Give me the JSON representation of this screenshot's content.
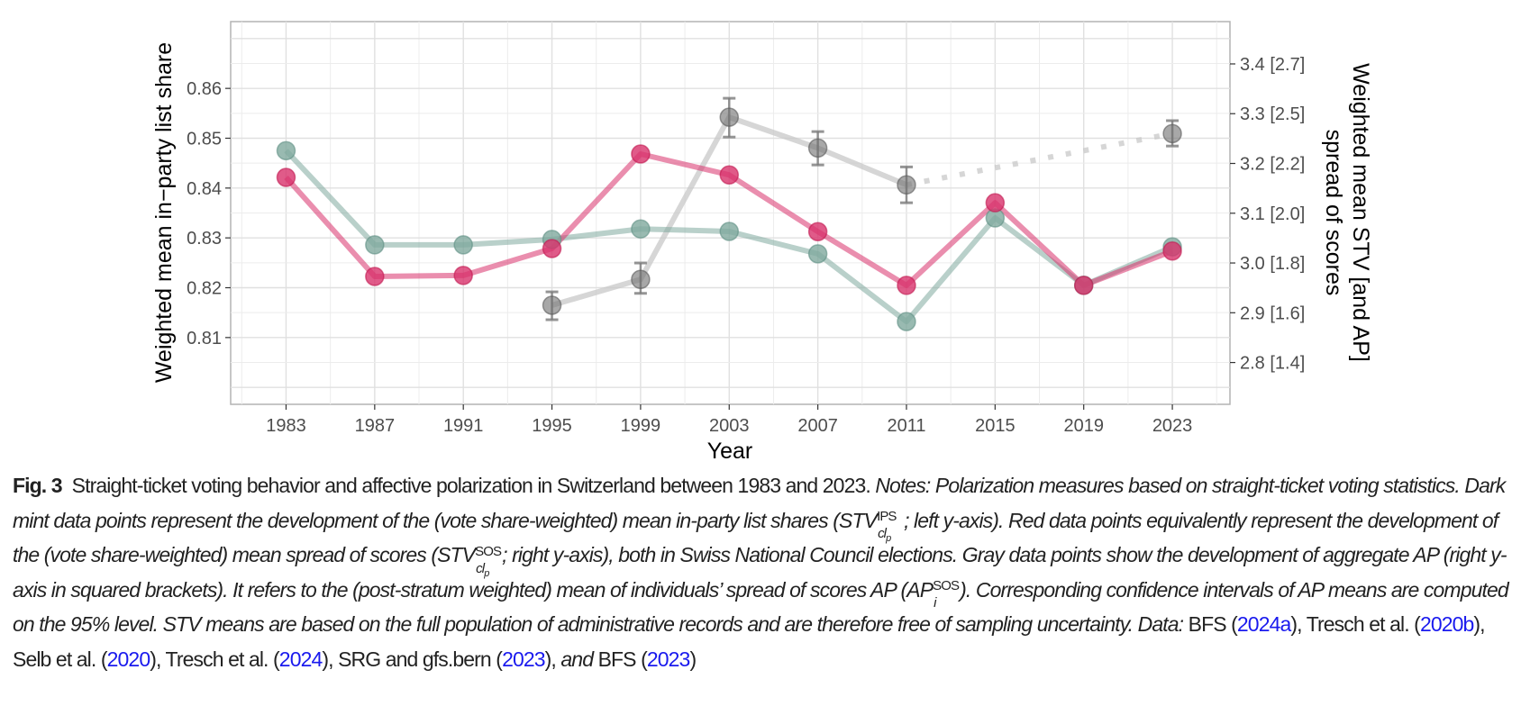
{
  "chart_data": {
    "type": "line",
    "title": "",
    "xlabel": "Year",
    "ylabel_left": "Weighted mean in−party list share",
    "ylabel_right_line1": "Weighted mean STV [and AP]",
    "ylabel_right_line2": "spread of scores",
    "x": [
      1983,
      1987,
      1991,
      1995,
      1999,
      2003,
      2007,
      2011,
      2015,
      2019,
      2023
    ],
    "x_tick_labels": [
      "1983",
      "1987",
      "1991",
      "1995",
      "1999",
      "2003",
      "2007",
      "2011",
      "2015",
      "2019",
      "2023"
    ],
    "ylim_left": [
      0.7966,
      0.8734
    ],
    "ylim_right": [
      2.716,
      3.485
    ],
    "xlim": [
      1980.5,
      2025.6
    ],
    "left_ticks": [
      0.81,
      0.82,
      0.83,
      0.84,
      0.85,
      0.86
    ],
    "left_tick_labels": [
      "0.81",
      "0.82",
      "0.83",
      "0.84",
      "0.85",
      "0.86"
    ],
    "right_ticks": [
      2.8,
      2.9,
      3.0,
      3.1,
      3.2,
      3.3,
      3.4
    ],
    "right_tick_labels": [
      "2.8 [1.4]",
      "2.9 [1.6]",
      "3.0 [1.8]",
      "3.1 [2.0]",
      "3.2 [2.2]",
      "3.3 [2.5]",
      "3.4 [2.7]"
    ],
    "grid": true,
    "legend": "none",
    "series": [
      {
        "name": "STV IPS (mean in-party list share, left y-axis)",
        "axis": "left",
        "color": "#7fa99e",
        "x": [
          1983,
          1987,
          1991,
          1995,
          1999,
          2003,
          2007,
          2011,
          2015,
          2019,
          2023
        ],
        "values": [
          0.8475,
          0.8286,
          0.8286,
          0.8297,
          0.8318,
          0.8313,
          0.8268,
          0.8132,
          0.834,
          0.8205,
          0.8282
        ]
      },
      {
        "name": "STV SOS (mean spread of scores, right y-axis)",
        "axis": "right",
        "color": "#d8326b",
        "x": [
          1983,
          1987,
          1991,
          1995,
          1999,
          2003,
          2007,
          2011,
          2015,
          2019,
          2023
        ],
        "values": [
          3.172,
          2.973,
          2.975,
          3.029,
          3.219,
          3.177,
          3.063,
          2.955,
          3.121,
          2.955,
          3.024
        ]
      },
      {
        "name": "Aggregate AP (right y-axis, squared brackets)",
        "axis": "right",
        "color": "#808080",
        "x": [
          1995,
          1999,
          2003,
          2007,
          2011,
          2023
        ],
        "values": [
          2.915,
          2.967,
          3.293,
          3.231,
          3.157,
          3.26
        ],
        "ci_low": [
          2.886,
          2.939,
          3.253,
          3.197,
          3.121,
          3.235
        ],
        "ci_high": [
          2.942,
          3.0,
          3.331,
          3.264,
          3.193,
          3.286
        ],
        "dotted_segment": [
          2011,
          2023
        ]
      }
    ]
  },
  "caption": {
    "fig_label": "Fig. 3",
    "title": "Straight-ticket voting behavior and affective polarization in Switzerland between 1983 and 2023.",
    "notes_label": "Notes:",
    "t1": "Polarization measures based on straight-ticket voting statistics. Dark mint data points represent the development of the (vote share-weighted) mean in-party list shares (STV",
    "ips_sup": "IPS",
    "clp_sub": "cl",
    "clp_subsub": "p",
    "t2": "; left y-axis). Red data points equivalently represent the development of the (vote share-weighted) mean spread of scores (STV",
    "sos_sup": "SOS",
    "t3": "; right y-axis), both in Swiss National Council elections. Gray data points show the development of aggregate AP (right y-axis in squared brackets). It refers to the (post-stratum weighted) mean of individuals’ spread of scores AP (AP",
    "i_sub": "i",
    "t4": "). Corresponding confidence intervals of AP means are computed on the 95% level. STV means are based on the full population of administrative records and are therefore free of sampling uncertainty.",
    "data_label": "Data:",
    "ref1_pre": "BFS (",
    "ref1_link": "2024a",
    "ref2_pre": "), Tresch et al. (",
    "ref2_link": "2020b",
    "ref3_pre": "), Selb et al. (",
    "ref3_link": "2020",
    "ref4_pre": "), Tresch et al. (",
    "ref4_link": "2024",
    "ref5_pre": "), SRG and gfs.bern (",
    "ref5_link": "2023",
    "ref6_mid": "), ",
    "and_word": "and",
    "ref6_pre": " BFS (",
    "ref6_link": "2023",
    "end": ")"
  }
}
